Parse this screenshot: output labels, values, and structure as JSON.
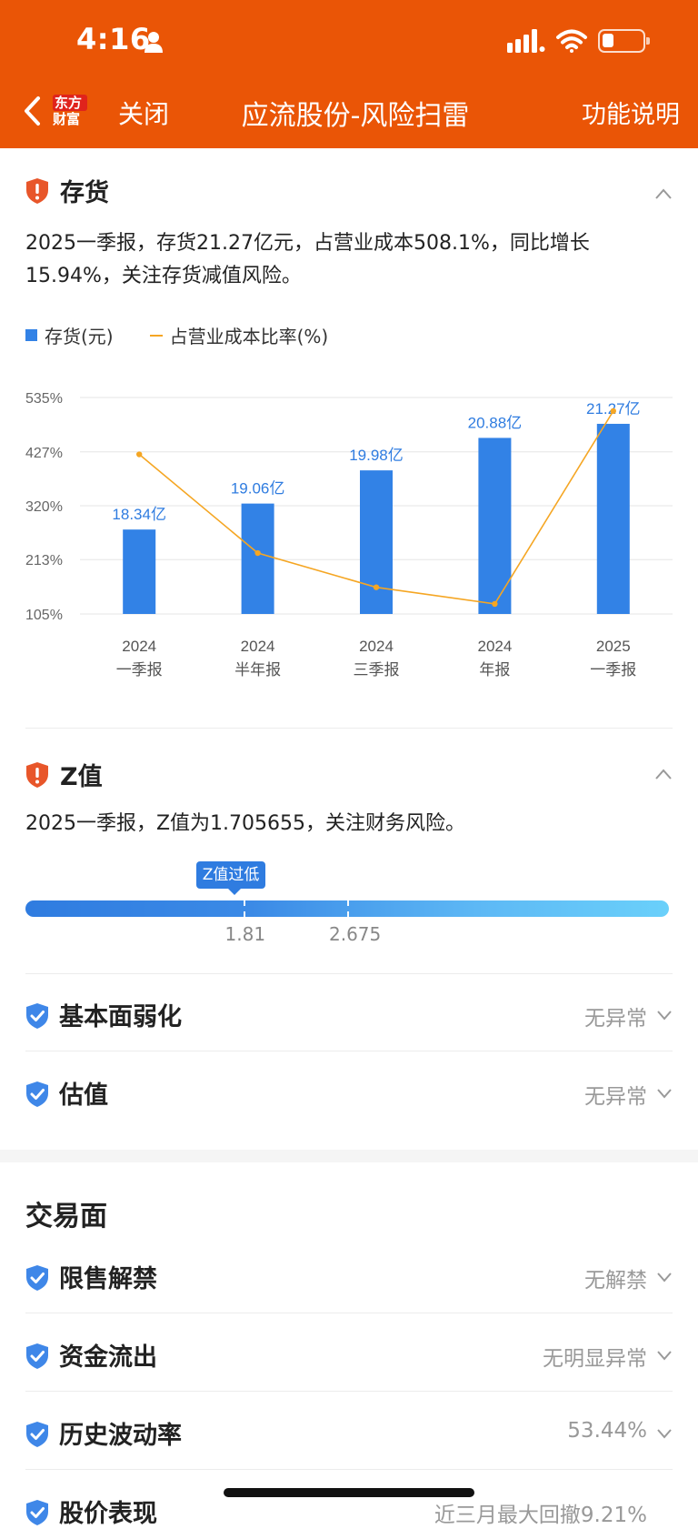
{
  "status_bar": {
    "time": "4:16"
  },
  "nav": {
    "logo_line1": "东方",
    "logo_line2": "财富",
    "close_label": "关闭",
    "title": "应流股份-风险扫雷",
    "help_label": "功能说明"
  },
  "inventory": {
    "title": "存货",
    "description": "2025一季报，存货21.27亿元，占营业成本508.1%，同比增长15.94%，关注存货减值风险。",
    "legend_bar": "存货(元)",
    "legend_line": "占营业成本比率(%)"
  },
  "chart_data": {
    "type": "bar",
    "categories": [
      "2024 一季报",
      "2024 半年报",
      "2024 三季报",
      "2024 年报",
      "2025 一季报"
    ],
    "category_year": [
      "2024",
      "2024",
      "2024",
      "2024",
      "2025"
    ],
    "category_period": [
      "一季报",
      "半年报",
      "三季报",
      "年报",
      "一季报"
    ],
    "series": [
      {
        "name": "存货(元)",
        "type": "bar",
        "values": [
          18.34,
          19.06,
          19.98,
          20.88,
          21.27
        ],
        "labels": [
          "18.34亿",
          "19.06亿",
          "19.98亿",
          "20.88亿",
          "21.27亿"
        ],
        "color": "#3282E6"
      },
      {
        "name": "占营业成本比率(%)",
        "type": "line",
        "values": [
          422,
          226,
          158,
          125,
          508.1
        ],
        "color": "#F5A623"
      }
    ],
    "y_ticks": [
      "535%",
      "427%",
      "320%",
      "213%",
      "105%"
    ],
    "y_tick_values": [
      535,
      427,
      320,
      213,
      105
    ],
    "ylim": [
      105,
      535
    ],
    "bar_ylim": [
      16.0,
      22.0
    ],
    "grid": true,
    "legend_position": "top-left"
  },
  "z_value": {
    "title": "Z值",
    "description": "2025一季报，Z值为1.705655，关注财务风险。",
    "tag": "Z值过低",
    "current": 1.705655,
    "thresholds": [
      "1.81",
      "2.675"
    ],
    "threshold_values": [
      1.81,
      2.675
    ],
    "scale_max": 5.35
  },
  "rows": [
    {
      "label": "基本面弱化",
      "value": "无异常"
    },
    {
      "label": "估值",
      "value": "无异常"
    }
  ],
  "trading": {
    "title": "交易面",
    "rows": [
      {
        "label": "限售解禁",
        "value": "无解禁"
      },
      {
        "label": "资金流出",
        "value": "无明显异常"
      },
      {
        "label": "历史波动率",
        "value": "53.44%"
      },
      {
        "label": "股价表现",
        "value": "近三月最大回撤9.21%"
      }
    ]
  },
  "colors": {
    "brand": "#EA5506",
    "warning": "#E8562A",
    "ok": "#3F87E8",
    "bar": "#3282E6",
    "line": "#F5A623"
  }
}
